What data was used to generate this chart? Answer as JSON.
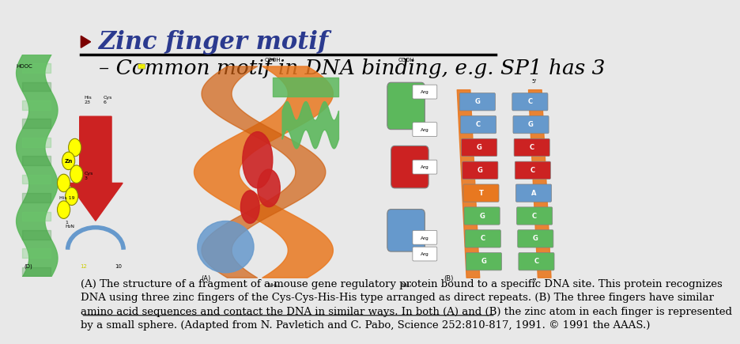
{
  "bg_color": "#e8e8e8",
  "title_bullet_color": "#7b0000",
  "title_text": "Zinc finger motif",
  "title_color": "#2b3a8f",
  "title_underline_color": "#000000",
  "subtitle_text": "– Common motif in DNA binding, e.g. SP1 has 3",
  "subtitle_color": "#000000",
  "caption_text": "(A) The structure of a fragment of a mouse gene regulatory protein bound to a specific DNA site. This protein recognizes\nDNA using three zinc fingers of the Cys-Cys-His-His type arranged as direct repeats. (B) The three fingers have similar\namino acid sequences and contact the DNA in similar ways. In both (A) and (B) the zinc atom in each finger is represented\nby a small sphere. (Adapted from N. Pavletich and C. Pabo, Science 252:810-817, 1991. © 1991 the AAAS.)",
  "caption_color": "#000000",
  "caption_underline_line": 2,
  "title_fontsize": 22,
  "subtitle_fontsize": 19,
  "caption_fontsize": 9.5
}
